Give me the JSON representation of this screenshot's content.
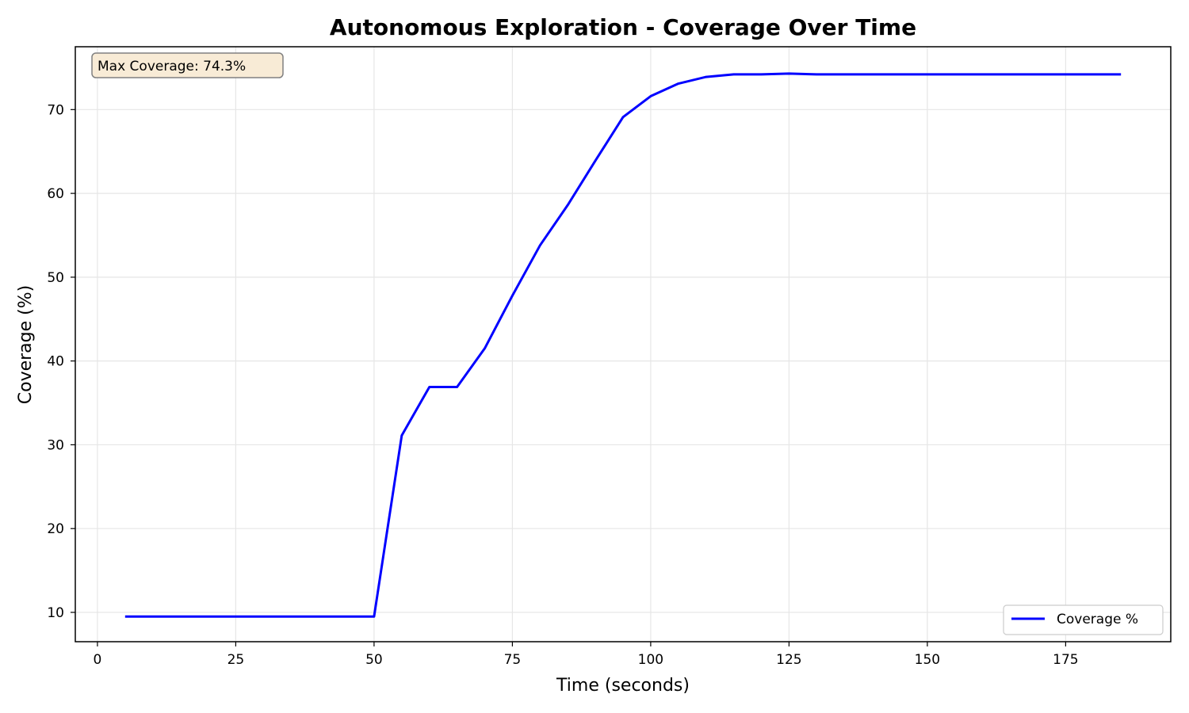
{
  "chart_data": {
    "type": "line",
    "title": "Autonomous Exploration - Coverage Over Time",
    "xlabel": "Time (seconds)",
    "ylabel": "Coverage (%)",
    "xlim": [
      -4,
      194
    ],
    "ylim": [
      6.5,
      77.5
    ],
    "xticks": [
      0,
      25,
      50,
      75,
      100,
      125,
      150,
      175
    ],
    "yticks": [
      10,
      20,
      30,
      40,
      50,
      60,
      70
    ],
    "grid": true,
    "legend_position": "lower-right",
    "annotation": "Max Coverage: 74.3%",
    "series": [
      {
        "name": "Coverage %",
        "color": "#0000ff",
        "x": [
          5,
          10,
          15,
          20,
          25,
          30,
          35,
          40,
          45,
          50,
          55,
          60,
          65,
          70,
          75,
          80,
          85,
          90,
          95,
          100,
          105,
          110,
          115,
          120,
          125,
          130,
          135,
          140,
          145,
          150,
          155,
          160,
          165,
          170,
          175,
          180,
          185
        ],
        "y": [
          9.5,
          9.5,
          9.5,
          9.5,
          9.5,
          9.5,
          9.5,
          9.5,
          9.5,
          9.5,
          31.1,
          36.9,
          36.9,
          41.5,
          47.8,
          53.8,
          58.6,
          63.9,
          69.1,
          71.6,
          73.1,
          73.9,
          74.2,
          74.2,
          74.3,
          74.2,
          74.2,
          74.2,
          74.2,
          74.2,
          74.2,
          74.2,
          74.2,
          74.2,
          74.2,
          74.2,
          74.2
        ]
      }
    ]
  },
  "colors": {
    "line": "#0000ff",
    "grid": "#e6e6e6",
    "annotation_bg": "#f8ebd6",
    "annotation_border": "#808080"
  }
}
